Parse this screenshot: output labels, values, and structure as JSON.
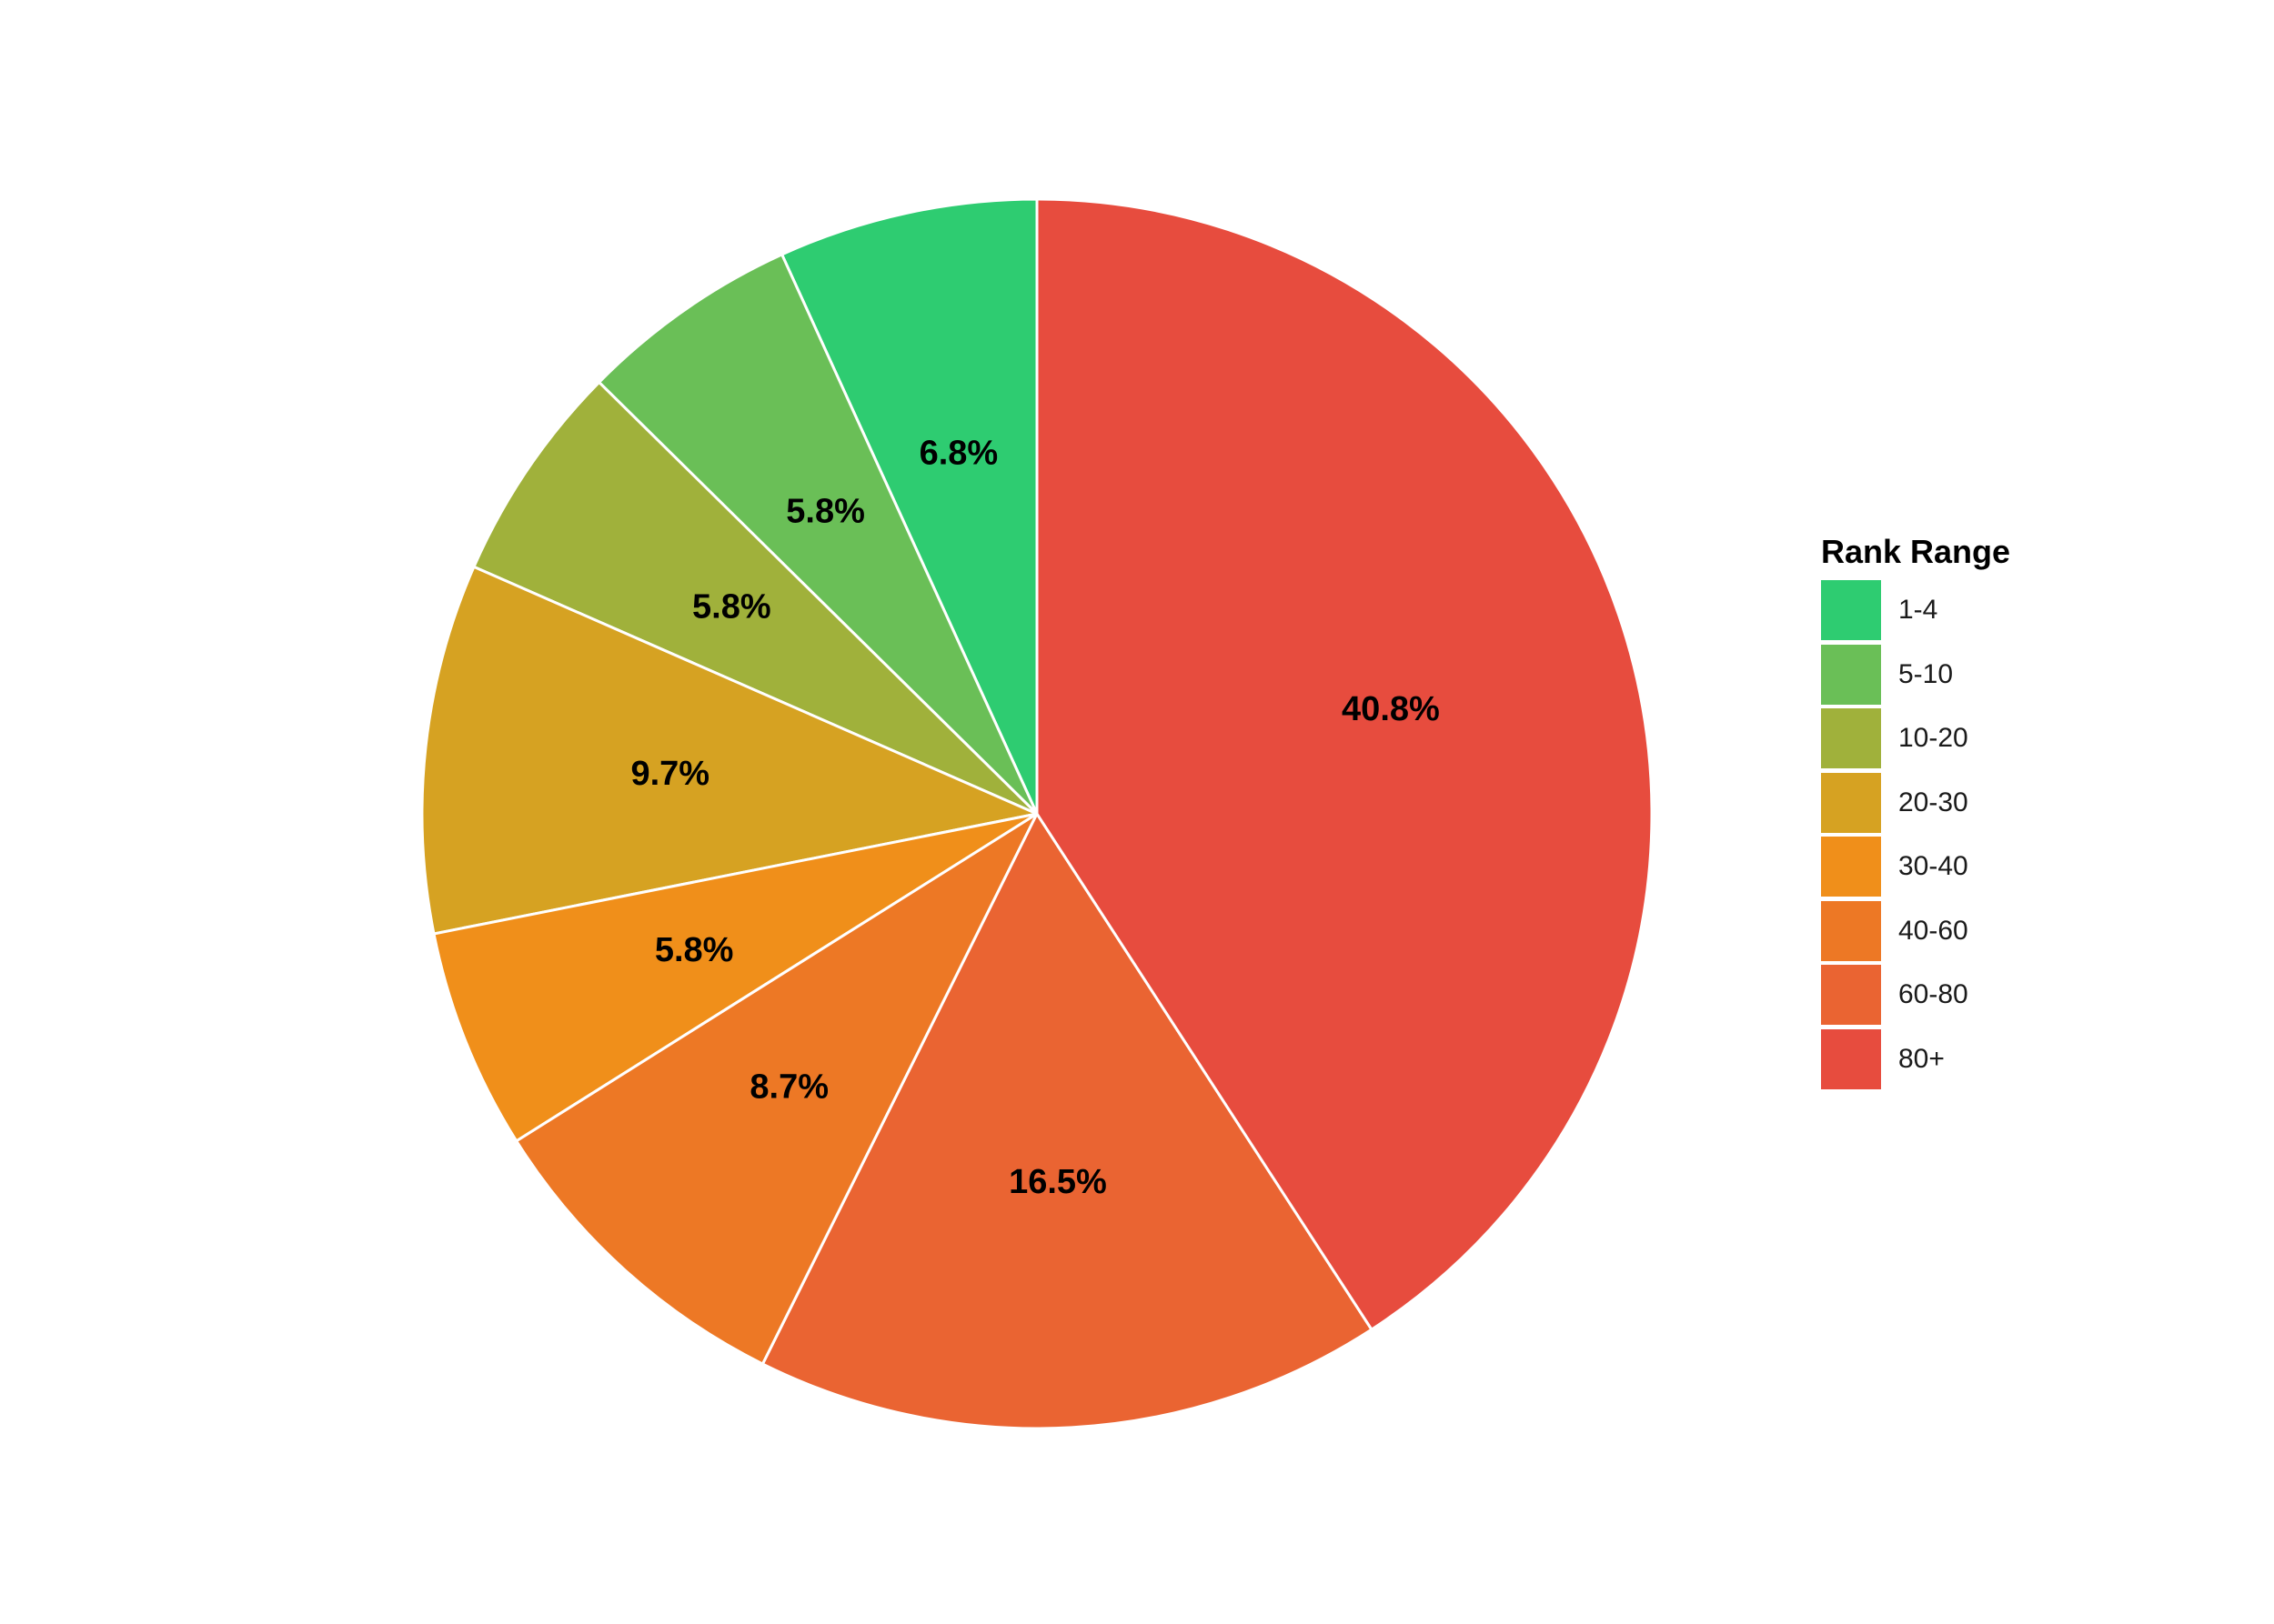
{
  "chart_data": {
    "type": "pie",
    "legend_title": "Rank Range",
    "legend_position": "right",
    "categories": [
      "1-4",
      "5-10",
      "10-20",
      "20-30",
      "30-40",
      "40-60",
      "60-80",
      "80+"
    ],
    "values": [
      6.8,
      5.8,
      5.8,
      9.7,
      5.8,
      8.7,
      16.5,
      40.8
    ],
    "labels": [
      "6.8%",
      "5.8%",
      "5.8%",
      "9.7%",
      "5.8%",
      "8.7%",
      "16.5%",
      "40.8%"
    ],
    "colors": [
      "#2ecc71",
      "#6abf57",
      "#a0b13b",
      "#d6a222",
      "#f08f1a",
      "#ed7825",
      "#ea6432",
      "#e74c3e"
    ],
    "direction": "counterclockwise from top",
    "unit": "%"
  }
}
